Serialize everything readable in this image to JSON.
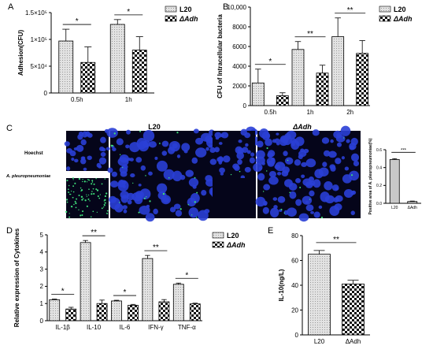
{
  "colors": {
    "l20": "#dcdcdc",
    "dadh": "checkerboard",
    "micro_bg": "#05051a",
    "nuclei": "#2a3fd6",
    "bacteria": "#3fe07a"
  },
  "chart_data": [
    {
      "panel_label": "A",
      "type": "bar",
      "categories": [
        "0.5h",
        "1h"
      ],
      "ylabel": "Adhesion(CFU)",
      "yticks": [
        "0",
        "5×10⁴",
        "1×10⁵",
        "1.5×10⁵"
      ],
      "ylim": [
        0,
        150000
      ],
      "series": [
        {
          "name": "L20",
          "values": [
            97000,
            128000
          ],
          "err": [
            22000,
            9000
          ]
        },
        {
          "name": "ΔAdh",
          "values": [
            57000,
            80000
          ],
          "err": [
            29000,
            25000
          ]
        }
      ],
      "significance": [
        "*",
        "*"
      ]
    },
    {
      "panel_label": "B",
      "type": "bar",
      "categories": [
        "0.5h",
        "1h",
        "2h"
      ],
      "ylabel": "CFU of Intracellular bacteria",
      "yticks": [
        "0",
        "2000",
        "4000",
        "6000",
        "8000",
        "10,000"
      ],
      "ylim": [
        0,
        10000
      ],
      "series": [
        {
          "name": "L20",
          "values": [
            2300,
            5700,
            7000
          ],
          "err": [
            1400,
            800,
            1900
          ]
        },
        {
          "name": "ΔAdh",
          "values": [
            1000,
            3300,
            5300
          ],
          "err": [
            300,
            800,
            1300
          ]
        }
      ],
      "significance": [
        "*",
        "**",
        "**"
      ]
    },
    {
      "panel_label": "C",
      "type": "bar",
      "categories": [
        "L20",
        "ΔAdh"
      ],
      "ylabel": "Positive area of A. pleuropneumoniae(%)",
      "yticks": [
        "0.0",
        "0.2",
        "0.4",
        "0.6"
      ],
      "ylim": [
        0,
        0.6
      ],
      "values": [
        0.49,
        0.02
      ],
      "err": [
        0.01,
        0.005
      ],
      "significance": [
        "***"
      ]
    },
    {
      "panel_label": "D",
      "type": "bar",
      "categories": [
        "IL-1β",
        "IL-10",
        "IL-6",
        "IFN-γ",
        "TNF-α"
      ],
      "ylabel": "Relative expression of Cytokines",
      "yticks": [
        "0",
        "1",
        "2",
        "3",
        "4",
        "5"
      ],
      "ylim": [
        0,
        5
      ],
      "series": [
        {
          "name": "L20",
          "values": [
            1.22,
            4.55,
            1.15,
            3.62,
            2.12
          ],
          "err": [
            0.04,
            0.12,
            0.04,
            0.18,
            0.07
          ]
        },
        {
          "name": "ΔAdh",
          "values": [
            0.68,
            1.0,
            0.9,
            1.1,
            0.98
          ],
          "err": [
            0.1,
            0.2,
            0.05,
            0.13,
            0.04
          ]
        }
      ],
      "significance": [
        "*",
        "**",
        "*",
        "**",
        "*"
      ]
    },
    {
      "panel_label": "E",
      "type": "bar",
      "categories": [
        "L20",
        "ΔAdh"
      ],
      "ylabel": "IL-10(ng/L)",
      "yticks": [
        "0",
        "20",
        "40",
        "60",
        "80"
      ],
      "ylim": [
        0,
        80
      ],
      "values": [
        65,
        41
      ],
      "err": [
        3,
        3
      ],
      "significance": [
        "**"
      ]
    }
  ],
  "panel_c": {
    "column_titles": [
      "L20",
      "ΔAdh"
    ],
    "row_labels": [
      "Hoechst",
      "A. pleuropneumoniae"
    ]
  }
}
